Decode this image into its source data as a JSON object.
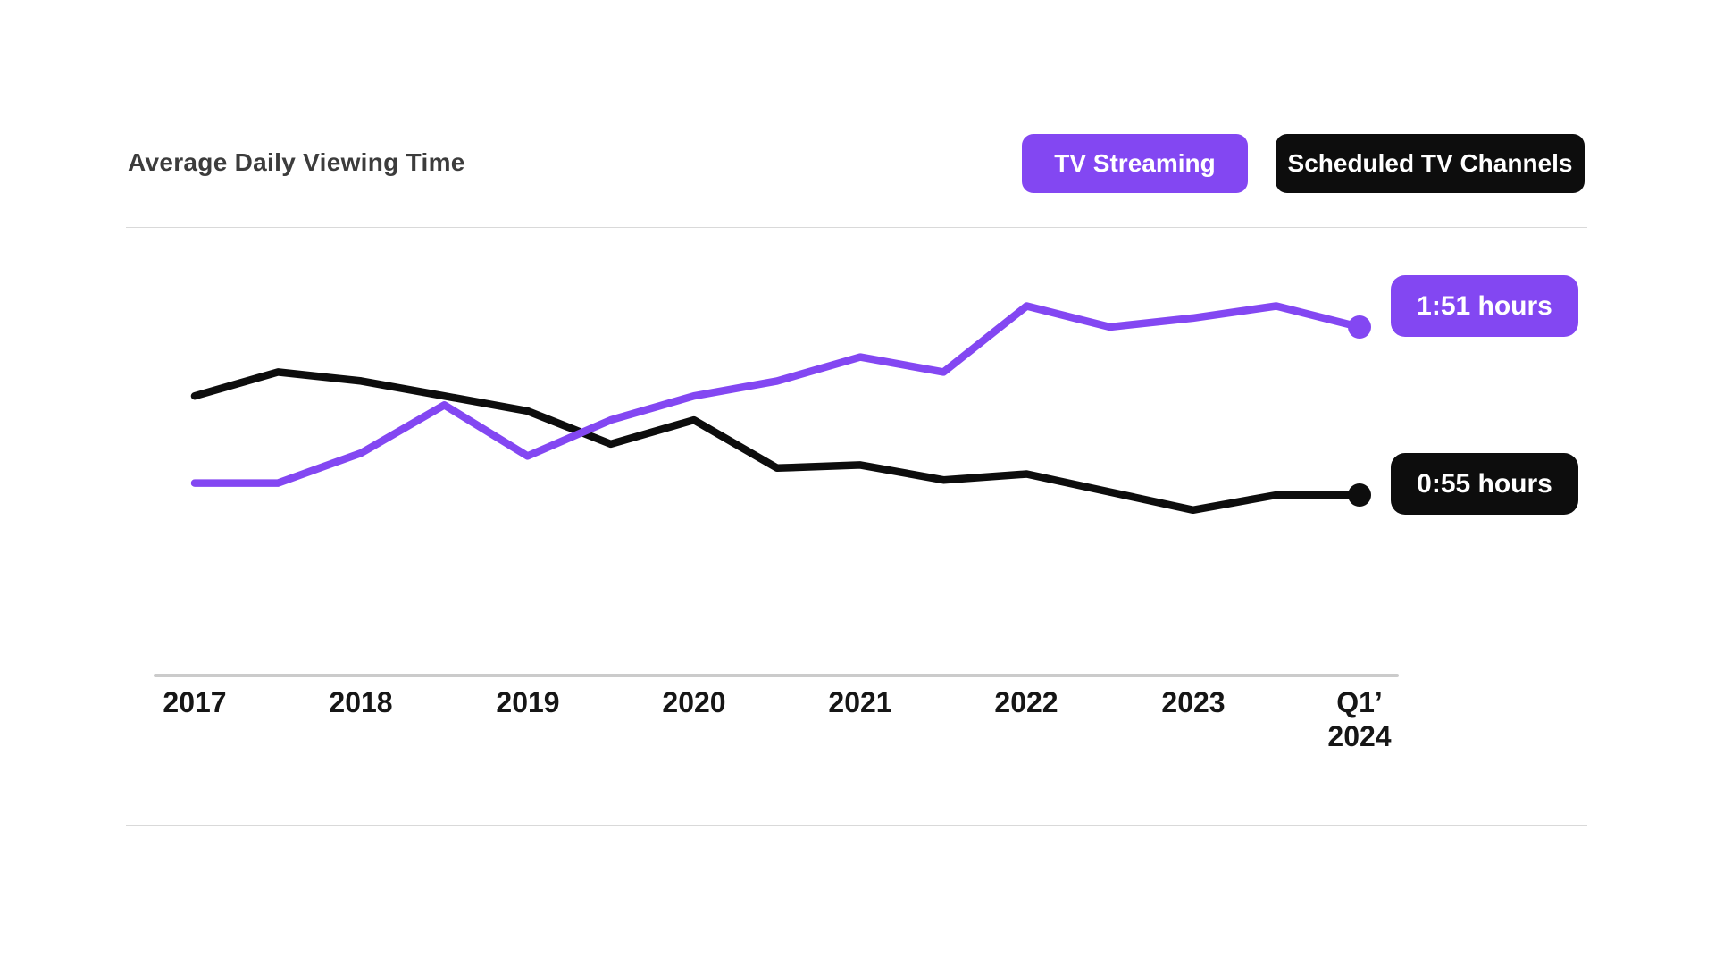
{
  "page": {
    "background": "#ffffff"
  },
  "header": {
    "title": "Average Daily Viewing Time",
    "legend": [
      {
        "label": "TV Streaming",
        "color": "#8347f2",
        "text_color": "#ffffff"
      },
      {
        "label": "Scheduled TV Channels",
        "color": "#0d0d0d",
        "text_color": "#ffffff"
      }
    ]
  },
  "chart_data": {
    "type": "line",
    "title": "Average Daily Viewing Time",
    "values_unit": "minutes per day",
    "x": [
      "2017",
      "2017.5",
      "2018",
      "2018.5",
      "2019",
      "2019.5",
      "2020",
      "2020.5",
      "2021",
      "2021.5",
      "2022",
      "2022.5",
      "2023",
      "2023.5",
      "Q1 2024"
    ],
    "x_tick_labels": [
      "2017",
      "2018",
      "2019",
      "2020",
      "2021",
      "2022",
      "2023",
      "Q1’|2024"
    ],
    "series": [
      {
        "name": "TV Streaming",
        "color": "#8347f2",
        "values": [
          59,
          59,
          69,
          85,
          68,
          80,
          88,
          93,
          101,
          96,
          118,
          111,
          114,
          118,
          111
        ],
        "end_label": "1:51 hours"
      },
      {
        "name": "Scheduled TV Channels",
        "color": "#0d0d0d",
        "values": [
          88,
          96,
          93,
          88,
          83,
          72,
          80,
          64,
          65,
          60,
          62,
          56,
          50,
          55,
          55
        ],
        "end_label": "0:55 hours"
      }
    ],
    "ylim": [
      40,
      130
    ],
    "grid": false,
    "legend_position": "top-right",
    "annotations": [
      "1:51 hours",
      "0:55 hours"
    ]
  },
  "colors": {
    "accent_purple": "#8347f2",
    "accent_black": "#0d0d0d",
    "separator": "#d9d9d9",
    "axis_line": "#cbcbcb",
    "title_text": "#3c3c3c",
    "tick_text": "#161616"
  }
}
